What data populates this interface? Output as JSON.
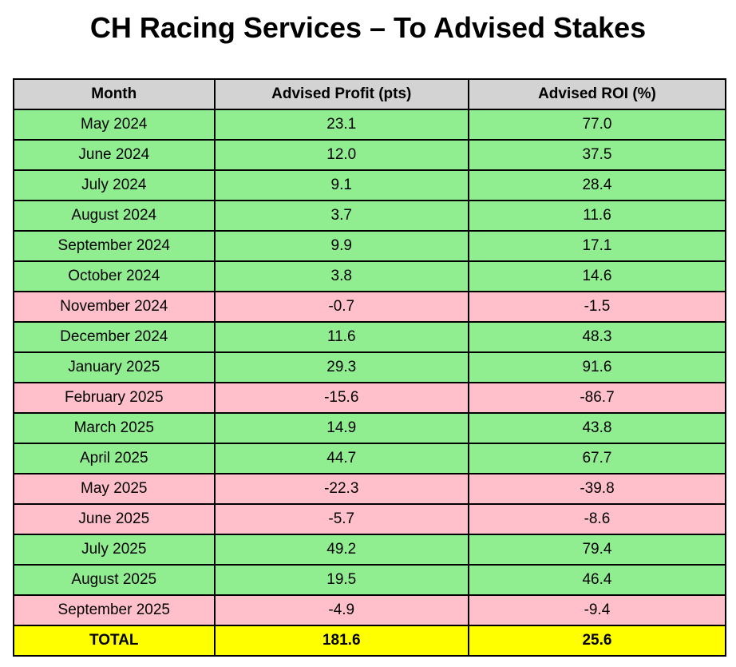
{
  "title": "CH Racing Services – To Advised Stakes",
  "chart_data": {
    "type": "table",
    "title": "CH Racing Services – To Advised Stakes",
    "columns": [
      "Month",
      "Advised Profit (pts)",
      "Advised ROI (%)"
    ],
    "rows": [
      {
        "month": "May 2024",
        "profit": "23.1",
        "roi": "77.0",
        "status": "positive"
      },
      {
        "month": "June 2024",
        "profit": "12.0",
        "roi": "37.5",
        "status": "positive"
      },
      {
        "month": "July 2024",
        "profit": "9.1",
        "roi": "28.4",
        "status": "positive"
      },
      {
        "month": "August 2024",
        "profit": "3.7",
        "roi": "11.6",
        "status": "positive"
      },
      {
        "month": "September 2024",
        "profit": "9.9",
        "roi": "17.1",
        "status": "positive"
      },
      {
        "month": "October 2024",
        "profit": "3.8",
        "roi": "14.6",
        "status": "positive"
      },
      {
        "month": "November 2024",
        "profit": "-0.7",
        "roi": "-1.5",
        "status": "negative"
      },
      {
        "month": "December 2024",
        "profit": "11.6",
        "roi": "48.3",
        "status": "positive"
      },
      {
        "month": "January 2025",
        "profit": "29.3",
        "roi": "91.6",
        "status": "positive"
      },
      {
        "month": "February 2025",
        "profit": "-15.6",
        "roi": "-86.7",
        "status": "negative"
      },
      {
        "month": "March 2025",
        "profit": "14.9",
        "roi": "43.8",
        "status": "positive"
      },
      {
        "month": "April 2025",
        "profit": "44.7",
        "roi": "67.7",
        "status": "positive"
      },
      {
        "month": "May 2025",
        "profit": "-22.3",
        "roi": "-39.8",
        "status": "negative"
      },
      {
        "month": "June 2025",
        "profit": "-5.7",
        "roi": "-8.6",
        "status": "negative"
      },
      {
        "month": "July 2025",
        "profit": "49.2",
        "roi": "79.4",
        "status": "positive"
      },
      {
        "month": "August 2025",
        "profit": "19.5",
        "roi": "46.4",
        "status": "positive"
      },
      {
        "month": "September 2025",
        "profit": "-4.9",
        "roi": "-9.4",
        "status": "negative"
      },
      {
        "month": "TOTAL",
        "profit": "181.6",
        "roi": "25.6",
        "status": "total"
      }
    ]
  },
  "colors": {
    "positive": "#90ee90",
    "negative": "#ffc0cb",
    "total": "#ffff00",
    "header": "#d3d3d3",
    "border": "#000000",
    "text": "#000000",
    "background": "#ffffff"
  }
}
